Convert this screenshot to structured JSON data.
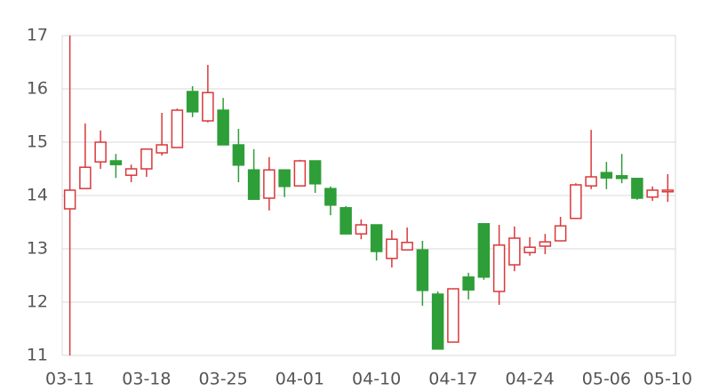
{
  "chart_data": {
    "type": "candlestick",
    "categories": [
      "03-11",
      null,
      null,
      null,
      null,
      "03-18",
      null,
      null,
      null,
      null,
      "03-25",
      null,
      null,
      null,
      null,
      "04-01",
      null,
      null,
      null,
      null,
      "04-10",
      null,
      null,
      null,
      null,
      "04-17",
      null,
      null,
      null,
      null,
      "04-24",
      null,
      null,
      null,
      null,
      "05-06",
      null,
      null,
      null,
      "05-10"
    ],
    "open": [
      13.75,
      14.13,
      14.63,
      14.65,
      14.38,
      14.5,
      14.8,
      14.9,
      15.95,
      15.4,
      15.6,
      14.95,
      14.48,
      13.95,
      14.48,
      14.18,
      14.65,
      14.13,
      13.77,
      13.28,
      13.45,
      12.82,
      12.98,
      12.98,
      12.15,
      11.25,
      12.47,
      13.47,
      12.2,
      12.7,
      12.93,
      13.05,
      13.15,
      13.57,
      14.18,
      14.43,
      14.37,
      14.32,
      13.97,
      14.07
    ],
    "high": [
      17,
      15.35,
      15.22,
      14.78,
      14.58,
      14.88,
      15.55,
      15.63,
      16.05,
      16.45,
      15.83,
      15.25,
      14.87,
      14.72,
      14.48,
      14.67,
      14.65,
      14.17,
      13.8,
      13.55,
      13.45,
      13.35,
      13.4,
      13.15,
      12.2,
      12.25,
      12.55,
      13.47,
      13.45,
      13.42,
      13.22,
      13.28,
      13.6,
      14.23,
      15.23,
      14.63,
      14.78,
      14.32,
      14.17,
      14.4
    ],
    "low": [
      11,
      14.13,
      14.5,
      14.33,
      14.25,
      14.35,
      14.75,
      14.9,
      15.47,
      15.37,
      14.95,
      14.25,
      13.93,
      13.72,
      13.97,
      14.18,
      14.05,
      13.63,
      13.28,
      13.18,
      12.78,
      12.65,
      12.98,
      11.93,
      11.12,
      11.25,
      12.05,
      12.42,
      11.95,
      12.58,
      12.87,
      12.9,
      13.15,
      13.57,
      14.12,
      14.12,
      14.23,
      13.92,
      13.9,
      13.88
    ],
    "close": [
      14.1,
      14.53,
      15.0,
      14.58,
      14.5,
      14.87,
      14.95,
      15.6,
      15.57,
      15.93,
      14.95,
      14.57,
      13.93,
      14.48,
      14.17,
      14.65,
      14.22,
      13.82,
      13.28,
      13.45,
      12.95,
      13.18,
      13.12,
      12.22,
      11.12,
      12.25,
      12.23,
      12.47,
      13.07,
      13.2,
      13.03,
      13.13,
      13.43,
      14.2,
      14.35,
      14.33,
      14.32,
      13.95,
      14.1,
      14.1
    ],
    "up_color": "#d9383a",
    "down_color": "#2e9e38",
    "ylim": [
      11,
      17
    ],
    "yticks": [
      11,
      12,
      13,
      14,
      15,
      16,
      17
    ],
    "grid": true
  }
}
